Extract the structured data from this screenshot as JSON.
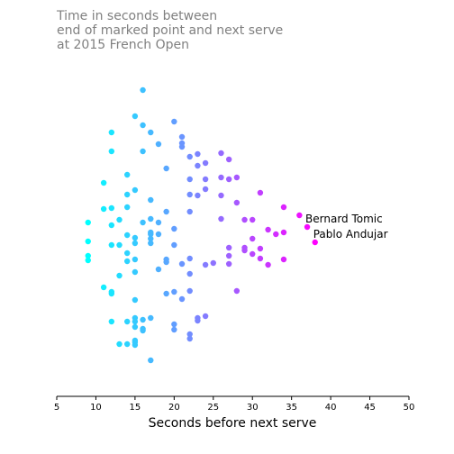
{
  "chart_data": {
    "type": "scatter",
    "title_lines": [
      "Time in seconds between",
      "end of marked point and next serve",
      "at 2015 French Open"
    ],
    "xlabel": "Seconds before next serve",
    "ylabel": "",
    "xlim": [
      5,
      50
    ],
    "x_ticks": [
      5,
      10,
      15,
      20,
      25,
      30,
      35,
      40,
      45,
      50
    ],
    "y_axis_visible": false,
    "grid": false,
    "color_scale": {
      "low": "#00ffff",
      "high": "#ff00ff",
      "domain": [
        9,
        38
      ]
    },
    "annotations": [
      {
        "text": "Bernard Tomic",
        "x": 37,
        "y": 243
      },
      {
        "text": "Pablo Andujar",
        "x": 38,
        "y": 260
      }
    ],
    "points": [
      {
        "x": 16,
        "y": 100
      },
      {
        "x": 15,
        "y": 129
      },
      {
        "x": 20,
        "y": 135
      },
      {
        "x": 16,
        "y": 139
      },
      {
        "x": 12,
        "y": 147
      },
      {
        "x": 17,
        "y": 147
      },
      {
        "x": 21,
        "y": 152
      },
      {
        "x": 21,
        "y": 159
      },
      {
        "x": 18,
        "y": 160
      },
      {
        "x": 21,
        "y": 163
      },
      {
        "x": 12,
        "y": 168
      },
      {
        "x": 16,
        "y": 168
      },
      {
        "x": 26,
        "y": 170
      },
      {
        "x": 23,
        "y": 171
      },
      {
        "x": 22,
        "y": 174
      },
      {
        "x": 27,
        "y": 177
      },
      {
        "x": 24,
        "y": 181
      },
      {
        "x": 23,
        "y": 184
      },
      {
        "x": 19,
        "y": 187
      },
      {
        "x": 14,
        "y": 194
      },
      {
        "x": 28,
        "y": 197
      },
      {
        "x": 26,
        "y": 197
      },
      {
        "x": 27,
        "y": 199
      },
      {
        "x": 24,
        "y": 199
      },
      {
        "x": 22,
        "y": 199
      },
      {
        "x": 11,
        "y": 203
      },
      {
        "x": 15,
        "y": 211
      },
      {
        "x": 24,
        "y": 210
      },
      {
        "x": 31,
        "y": 214
      },
      {
        "x": 14,
        "y": 216
      },
      {
        "x": 22,
        "y": 216
      },
      {
        "x": 23,
        "y": 217
      },
      {
        "x": 26,
        "y": 217
      },
      {
        "x": 28,
        "y": 225
      },
      {
        "x": 17,
        "y": 222
      },
      {
        "x": 14,
        "y": 230
      },
      {
        "x": 12,
        "y": 231
      },
      {
        "x": 11,
        "y": 232
      },
      {
        "x": 34,
        "y": 230
      },
      {
        "x": 22,
        "y": 235
      },
      {
        "x": 19,
        "y": 235
      },
      {
        "x": 36,
        "y": 239
      },
      {
        "x": 13,
        "y": 244
      },
      {
        "x": 26,
        "y": 243
      },
      {
        "x": 29,
        "y": 244
      },
      {
        "x": 30,
        "y": 244
      },
      {
        "x": 17,
        "y": 243
      },
      {
        "x": 18,
        "y": 247
      },
      {
        "x": 16,
        "y": 247
      },
      {
        "x": 9,
        "y": 247
      },
      {
        "x": 12,
        "y": 250
      },
      {
        "x": 37,
        "y": 252
      },
      {
        "x": 20,
        "y": 254
      },
      {
        "x": 32,
        "y": 255
      },
      {
        "x": 33,
        "y": 260
      },
      {
        "x": 34,
        "y": 258
      },
      {
        "x": 14,
        "y": 261
      },
      {
        "x": 15,
        "y": 264
      },
      {
        "x": 17,
        "y": 260
      },
      {
        "x": 17,
        "y": 258
      },
      {
        "x": 18,
        "y": 260
      },
      {
        "x": 30,
        "y": 265
      },
      {
        "x": 38,
        "y": 269
      },
      {
        "x": 9,
        "y": 268
      },
      {
        "x": 12,
        "y": 272
      },
      {
        "x": 13,
        "y": 272
      },
      {
        "x": 15,
        "y": 270
      },
      {
        "x": 17,
        "y": 265
      },
      {
        "x": 17,
        "y": 270
      },
      {
        "x": 20,
        "y": 272
      },
      {
        "x": 27,
        "y": 275
      },
      {
        "x": 29,
        "y": 275
      },
      {
        "x": 29,
        "y": 278
      },
      {
        "x": 31,
        "y": 276
      },
      {
        "x": 30,
        "y": 282
      },
      {
        "x": 9,
        "y": 284
      },
      {
        "x": 14,
        "y": 281
      },
      {
        "x": 27,
        "y": 284
      },
      {
        "x": 9,
        "y": 289
      },
      {
        "x": 15,
        "y": 288
      },
      {
        "x": 19,
        "y": 288
      },
      {
        "x": 31,
        "y": 287
      },
      {
        "x": 34,
        "y": 288
      },
      {
        "x": 14,
        "y": 290
      },
      {
        "x": 19,
        "y": 291
      },
      {
        "x": 22,
        "y": 287
      },
      {
        "x": 21,
        "y": 293
      },
      {
        "x": 25,
        "y": 292
      },
      {
        "x": 24,
        "y": 294
      },
      {
        "x": 27,
        "y": 293
      },
      {
        "x": 32,
        "y": 294
      },
      {
        "x": 18,
        "y": 299
      },
      {
        "x": 15,
        "y": 302
      },
      {
        "x": 22,
        "y": 304
      },
      {
        "x": 13,
        "y": 306
      },
      {
        "x": 11,
        "y": 319
      },
      {
        "x": 12,
        "y": 324
      },
      {
        "x": 12,
        "y": 326
      },
      {
        "x": 22,
        "y": 323
      },
      {
        "x": 28,
        "y": 323
      },
      {
        "x": 20,
        "y": 324
      },
      {
        "x": 19,
        "y": 326
      },
      {
        "x": 21,
        "y": 332
      },
      {
        "x": 15,
        "y": 333
      },
      {
        "x": 24,
        "y": 351
      },
      {
        "x": 23,
        "y": 353
      },
      {
        "x": 23,
        "y": 356
      },
      {
        "x": 15,
        "y": 353
      },
      {
        "x": 17,
        "y": 353
      },
      {
        "x": 16,
        "y": 355
      },
      {
        "x": 12,
        "y": 357
      },
      {
        "x": 14,
        "y": 357
      },
      {
        "x": 15,
        "y": 357
      },
      {
        "x": 20,
        "y": 360
      },
      {
        "x": 15,
        "y": 363
      },
      {
        "x": 16,
        "y": 365
      },
      {
        "x": 16,
        "y": 367
      },
      {
        "x": 20,
        "y": 366
      },
      {
        "x": 22,
        "y": 371
      },
      {
        "x": 22,
        "y": 376
      },
      {
        "x": 15,
        "y": 378
      },
      {
        "x": 13,
        "y": 382
      },
      {
        "x": 14,
        "y": 382
      },
      {
        "x": 15,
        "y": 380
      },
      {
        "x": 15,
        "y": 383
      },
      {
        "x": 17,
        "y": 400
      }
    ]
  }
}
